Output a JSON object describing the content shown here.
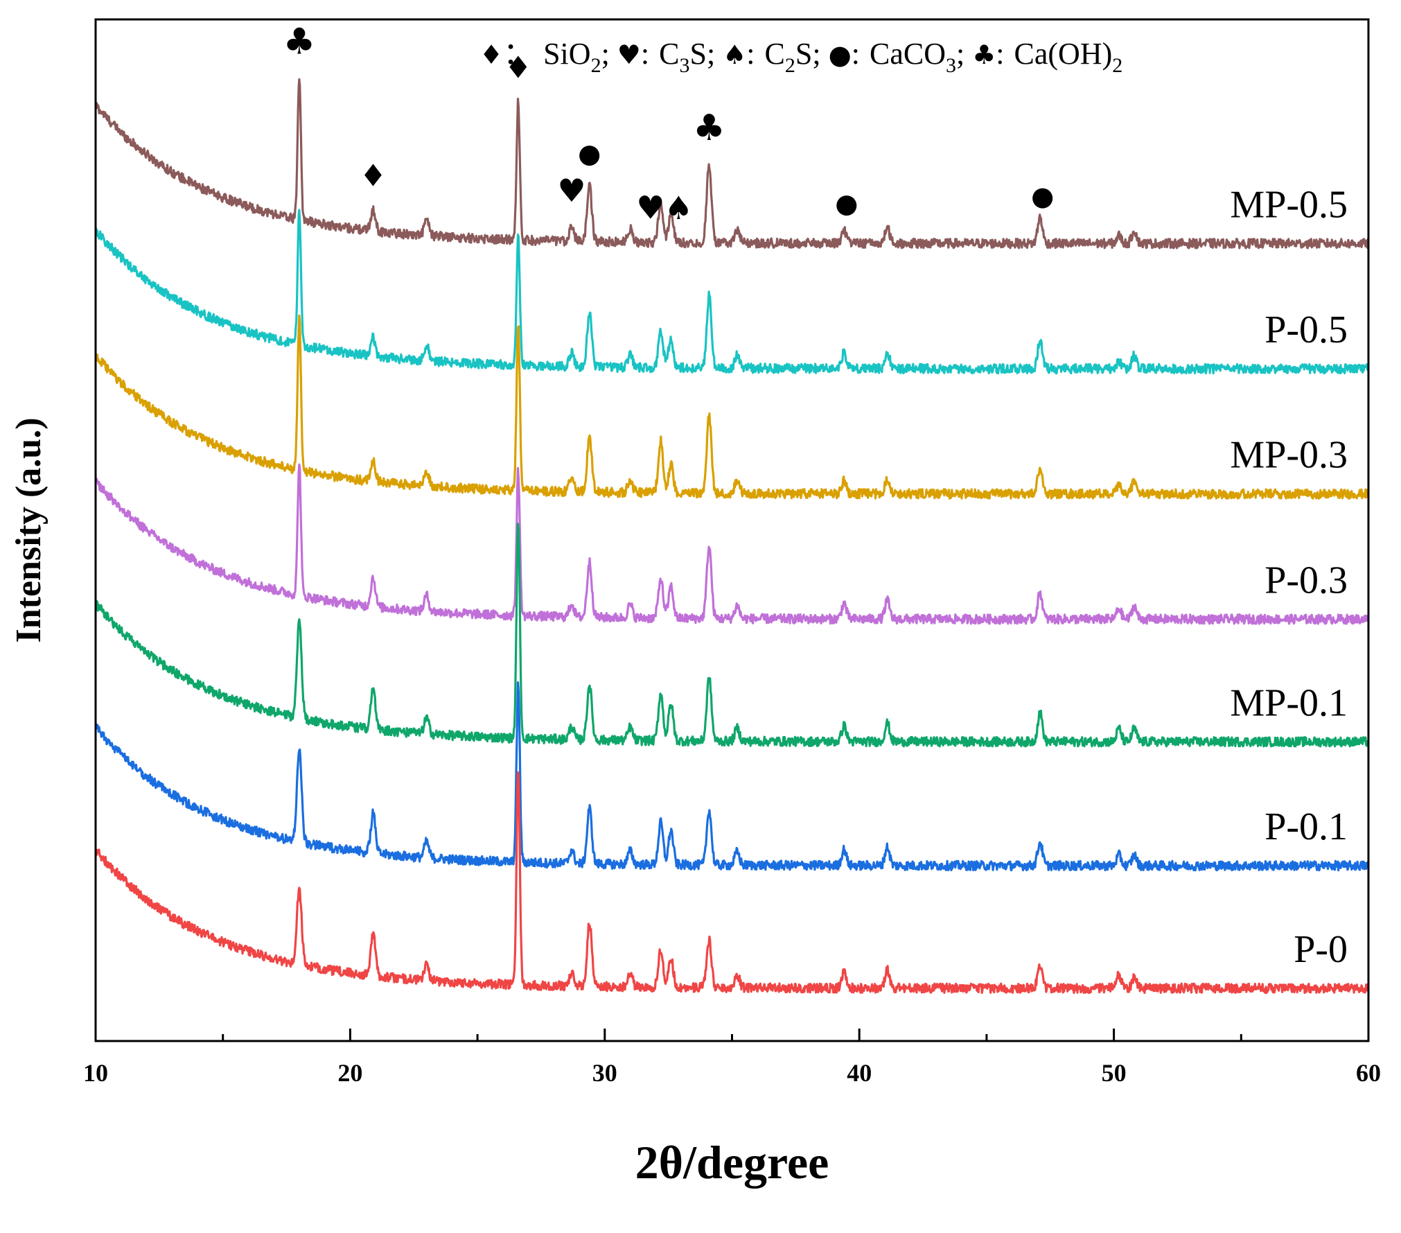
{
  "chart_data": {
    "type": "line",
    "xlabel": "2θ/degree",
    "ylabel": "Intensity (a.u.)",
    "xlim": [
      10,
      60
    ],
    "xticks": [
      10,
      20,
      30,
      40,
      50,
      60
    ],
    "y_ticks_shown": false,
    "legend_placement": "top",
    "legend": [
      {
        "symbol": "♦",
        "sep": "：",
        "label": "SiO",
        "sub": "2"
      },
      {
        "symbol": "♥",
        "sep": ":",
        "label": "C",
        "sub": "3",
        "tail": "S"
      },
      {
        "symbol": "♠",
        "sep": ":",
        "label": "C",
        "sub": "2",
        "tail": "S"
      },
      {
        "symbol": "●",
        "sep": ":",
        "label": "CaCO",
        "sub": "3"
      },
      {
        "symbol": "♣",
        "sep": ":",
        "label": "Ca(OH)",
        "sub": "2"
      }
    ],
    "peak_markers": [
      {
        "symbol": "♣",
        "phase": "Ca(OH)2",
        "x": 18.0
      },
      {
        "symbol": "♦",
        "phase": "SiO2",
        "x": 20.9
      },
      {
        "symbol": "♦",
        "phase": "SiO2",
        "x": 26.6
      },
      {
        "symbol": "♥",
        "phase": "C3S",
        "x": 28.7
      },
      {
        "symbol": "●",
        "phase": "CaCO3",
        "x": 29.4
      },
      {
        "symbol": "♥",
        "phase": "C3S",
        "x": 31.8
      },
      {
        "symbol": "♠",
        "phase": "C2S",
        "x": 32.9
      },
      {
        "symbol": "♣",
        "phase": "Ca(OH)2",
        "x": 34.1
      },
      {
        "symbol": "●",
        "phase": "CaCO3",
        "x": 39.5
      },
      {
        "symbol": "●",
        "phase": "CaCO3",
        "x": 47.2
      }
    ],
    "peak_positions_2theta": [
      18.0,
      20.9,
      23.0,
      26.6,
      28.7,
      29.4,
      31.0,
      32.2,
      32.6,
      34.1,
      35.2,
      39.4,
      41.1,
      47.1,
      50.2,
      50.8
    ],
    "series": [
      {
        "name": "MP-0.5",
        "color": "#8b5a5a",
        "offset": 5.55,
        "peaks": [
          [
            "18.0",
            1.08
          ],
          [
            "20.9",
            0.16
          ],
          [
            "23.0",
            0.12
          ],
          [
            "26.6",
            1.05
          ],
          [
            "28.7",
            0.12
          ],
          [
            "29.4",
            0.42
          ],
          [
            "31.0",
            0.1
          ],
          [
            "32.2",
            0.3
          ],
          [
            "32.6",
            0.22
          ],
          [
            "34.1",
            0.6
          ],
          [
            "35.2",
            0.1
          ],
          [
            "39.4",
            0.1
          ],
          [
            "41.1",
            0.12
          ],
          [
            "47.1",
            0.2
          ],
          [
            "50.2",
            0.06
          ],
          [
            "50.8",
            0.1
          ]
        ]
      },
      {
        "name": "P-0.5",
        "color": "#19c3c3",
        "offset": 4.6,
        "peaks": [
          [
            "18.0",
            1.02
          ],
          [
            "20.9",
            0.14
          ],
          [
            "23.0",
            0.12
          ],
          [
            "26.6",
            0.98
          ],
          [
            "28.7",
            0.1
          ],
          [
            "29.4",
            0.4
          ],
          [
            "31.0",
            0.1
          ],
          [
            "32.2",
            0.28
          ],
          [
            "32.6",
            0.22
          ],
          [
            "34.1",
            0.55
          ],
          [
            "35.2",
            0.1
          ],
          [
            "39.4",
            0.12
          ],
          [
            "41.1",
            0.12
          ],
          [
            "47.1",
            0.22
          ],
          [
            "50.2",
            0.06
          ],
          [
            "50.8",
            0.1
          ]
        ]
      },
      {
        "name": "MP-0.3",
        "color": "#d9a000",
        "offset": 3.65,
        "peaks": [
          [
            "18.0",
            1.15
          ],
          [
            "20.9",
            0.16
          ],
          [
            "23.0",
            0.12
          ],
          [
            "26.6",
            1.25
          ],
          [
            "28.7",
            0.12
          ],
          [
            "29.4",
            0.42
          ],
          [
            "31.0",
            0.1
          ],
          [
            "32.2",
            0.4
          ],
          [
            "32.6",
            0.22
          ],
          [
            "34.1",
            0.58
          ],
          [
            "35.2",
            0.1
          ],
          [
            "39.4",
            0.1
          ],
          [
            "41.1",
            0.12
          ],
          [
            "47.1",
            0.2
          ],
          [
            "50.2",
            0.06
          ],
          [
            "50.8",
            0.1
          ]
        ]
      },
      {
        "name": "P-0.3",
        "color": "#c070d8",
        "offset": 2.7,
        "peaks": [
          [
            "18.0",
            1.0
          ],
          [
            "20.9",
            0.22
          ],
          [
            "23.0",
            0.12
          ],
          [
            "26.6",
            1.1
          ],
          [
            "28.7",
            0.1
          ],
          [
            "29.4",
            0.42
          ],
          [
            "31.0",
            0.1
          ],
          [
            "32.2",
            0.3
          ],
          [
            "32.6",
            0.24
          ],
          [
            "34.1",
            0.55
          ],
          [
            "35.2",
            0.1
          ],
          [
            "39.4",
            0.12
          ],
          [
            "41.1",
            0.14
          ],
          [
            "47.1",
            0.2
          ],
          [
            "50.2",
            0.08
          ],
          [
            "50.8",
            0.1
          ]
        ]
      },
      {
        "name": "MP-0.1",
        "color": "#0fa66a",
        "offset": 1.77,
        "peaks": [
          [
            "18.0",
            0.72
          ],
          [
            "20.9",
            0.3
          ],
          [
            "23.0",
            0.12
          ],
          [
            "26.6",
            1.65
          ],
          [
            "28.7",
            0.1
          ],
          [
            "29.4",
            0.42
          ],
          [
            "31.0",
            0.1
          ],
          [
            "32.2",
            0.36
          ],
          [
            "32.6",
            0.28
          ],
          [
            "34.1",
            0.48
          ],
          [
            "35.2",
            0.1
          ],
          [
            "39.4",
            0.12
          ],
          [
            "41.1",
            0.14
          ],
          [
            "47.1",
            0.22
          ],
          [
            "50.2",
            0.1
          ],
          [
            "50.8",
            0.1
          ]
        ]
      },
      {
        "name": "P-0.1",
        "color": "#1a6ee0",
        "offset": 0.83,
        "peaks": [
          [
            "18.0",
            0.7
          ],
          [
            "20.9",
            0.3
          ],
          [
            "23.0",
            0.12
          ],
          [
            "26.6",
            1.35
          ],
          [
            "28.7",
            0.1
          ],
          [
            "29.4",
            0.42
          ],
          [
            "31.0",
            0.1
          ],
          [
            "32.2",
            0.32
          ],
          [
            "32.6",
            0.26
          ],
          [
            "34.1",
            0.42
          ],
          [
            "35.2",
            0.1
          ],
          [
            "39.4",
            0.12
          ],
          [
            "41.1",
            0.14
          ],
          [
            "47.1",
            0.18
          ],
          [
            "50.2",
            0.08
          ],
          [
            "50.8",
            0.08
          ]
        ]
      },
      {
        "name": "P-0",
        "color": "#f04545",
        "offset": -0.1,
        "peaks": [
          [
            "18.0",
            0.58
          ],
          [
            "20.9",
            0.32
          ],
          [
            "23.0",
            0.12
          ],
          [
            "26.6",
            1.65
          ],
          [
            "28.7",
            0.1
          ],
          [
            "29.4",
            0.48
          ],
          [
            "31.0",
            0.1
          ],
          [
            "32.2",
            0.28
          ],
          [
            "32.6",
            0.22
          ],
          [
            "34.1",
            0.36
          ],
          [
            "35.2",
            0.1
          ],
          [
            "39.4",
            0.12
          ],
          [
            "41.1",
            0.14
          ],
          [
            "47.1",
            0.18
          ],
          [
            "50.2",
            0.1
          ],
          [
            "50.8",
            0.08
          ]
        ]
      }
    ],
    "background": {
      "amplitude": 1.05,
      "decay": 0.22
    },
    "ylim": [
      -0.5,
      7.25
    ]
  }
}
